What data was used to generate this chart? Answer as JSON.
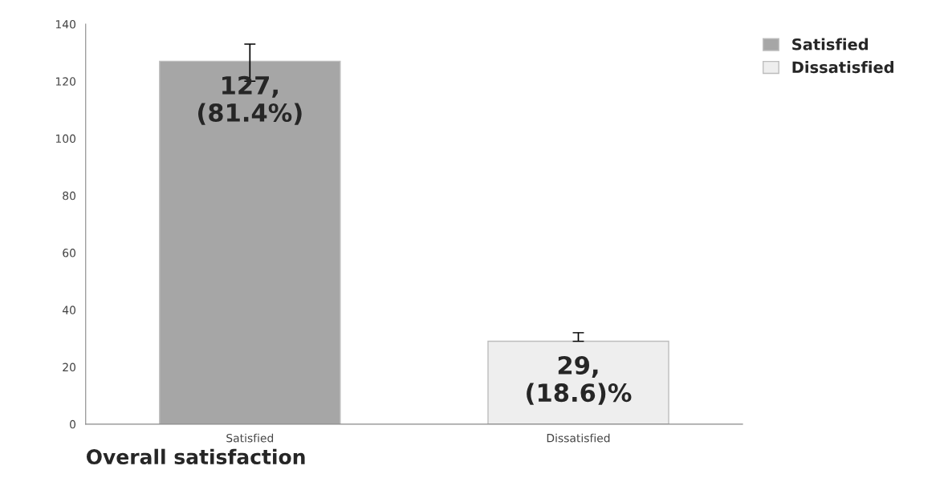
{
  "chart_data": {
    "type": "bar",
    "categories": [
      "Satisfied",
      "Dissatisfied"
    ],
    "series": [
      {
        "name": "Satisfied",
        "color": "#a6a6a6",
        "values": [
          127,
          null
        ],
        "errors": [
          [
            120,
            133
          ],
          null
        ],
        "value_labels": [
          "127,\n(81.4%)",
          null
        ]
      },
      {
        "name": "Dissatisfied",
        "color": "#eeeeee",
        "values": [
          null,
          29
        ],
        "errors": [
          null,
          [
            29,
            32
          ]
        ],
        "value_labels": [
          null,
          "29,\n(18.6)%"
        ]
      }
    ],
    "xlabel": "Overall satisfaction",
    "ylim": [
      0,
      140
    ],
    "yticks": [
      0,
      20,
      40,
      60,
      80,
      100,
      120,
      140
    ],
    "grid": false,
    "legend": "top right"
  }
}
